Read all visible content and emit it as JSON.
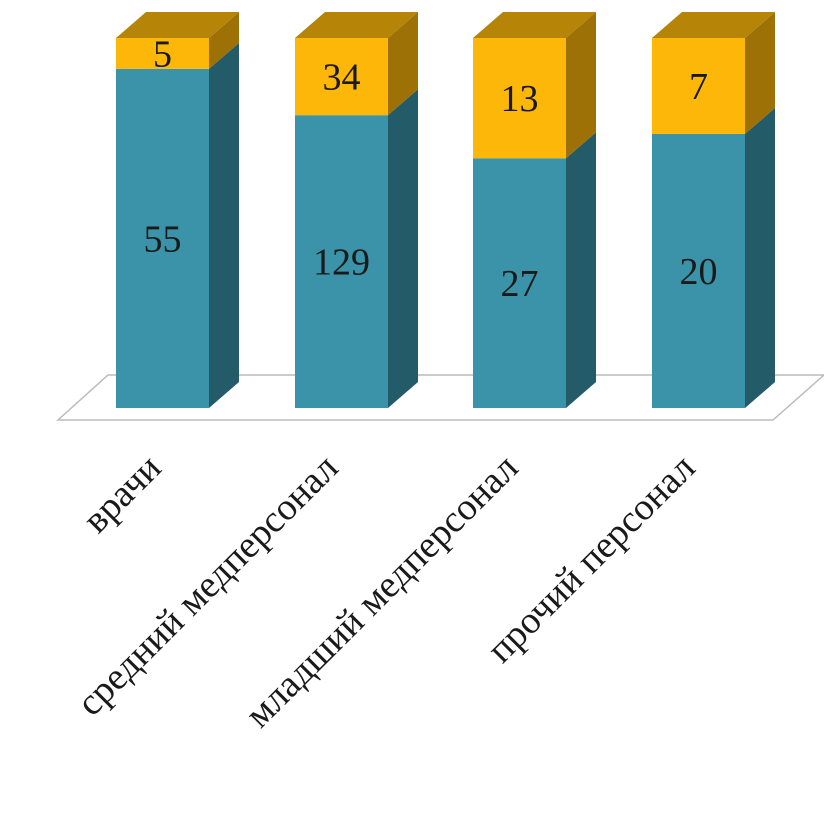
{
  "chart_data": {
    "type": "bar",
    "stacked": true,
    "three_d": true,
    "title": "",
    "xlabel": "",
    "ylabel": "",
    "legend": "none",
    "grid": false,
    "categories": [
      "врачи",
      "средний медперсонал",
      "младший медперсонал",
      "прочий персонал"
    ],
    "value_share_of_total": true,
    "series": [
      {
        "values": [
          55,
          129,
          27,
          20
        ],
        "color": "#3A93A8"
      },
      {
        "values": [
          5,
          34,
          13,
          7
        ],
        "color": "#FDB708"
      }
    ]
  }
}
